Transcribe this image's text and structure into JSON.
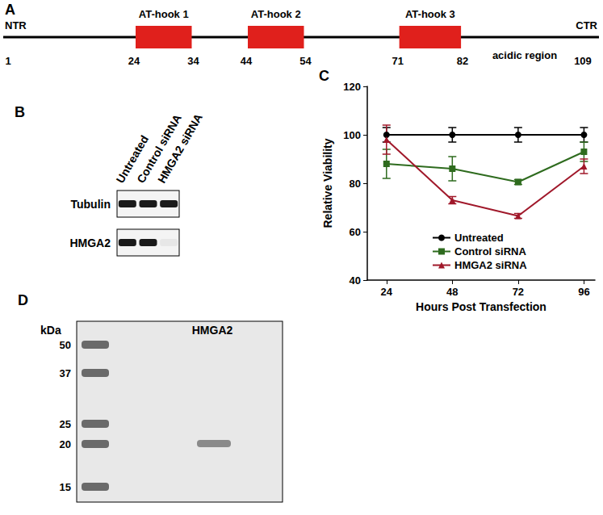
{
  "panels": {
    "A": {
      "label": "A",
      "start_label": "NTR",
      "end_label": "CTR",
      "first_residue": 1,
      "last_residue": 109,
      "domains": [
        {
          "name": "AT-hook 1",
          "start": 24,
          "end": 34
        },
        {
          "name": "AT-hook 2",
          "start": 44,
          "end": 54
        },
        {
          "name": "AT-hook 3",
          "start": 71,
          "end": 82
        }
      ],
      "region": "acidic region"
    },
    "B": {
      "label": "B",
      "lanes": [
        "Untreated",
        "Control siRNA",
        "HMGA2 siRNA"
      ],
      "rows": [
        "Tubulin",
        "HMGA2"
      ]
    },
    "D": {
      "label": "D",
      "unit": "kDa",
      "ladder": [
        50,
        37,
        25,
        20,
        15
      ],
      "lane": "HMGA2"
    }
  },
  "chart_data": {
    "label": "C",
    "type": "line",
    "x_label": "Hours Post Transfection",
    "y_label": "Relative Viability",
    "x": [
      24,
      48,
      72,
      96
    ],
    "xlim": [
      17,
      100
    ],
    "xticks": [
      24,
      48,
      72,
      96
    ],
    "ylim": [
      40,
      120
    ],
    "yticks": [
      40,
      60,
      80,
      100,
      120
    ],
    "grid": false,
    "legend": "inside",
    "series": [
      {
        "name": "Untreated",
        "color": "#000000",
        "marker": "circle",
        "values": [
          100,
          100,
          100,
          100
        ],
        "errors": [
          3,
          3,
          3,
          3
        ]
      },
      {
        "name": "Control siRNA",
        "color": "#2e6b1e",
        "marker": "square",
        "values": [
          88,
          86,
          80.5,
          93
        ],
        "errors": [
          6,
          5,
          1,
          4
        ]
      },
      {
        "name": "HMGA2 siRNA",
        "color": "#a0182a",
        "marker": "triangle",
        "values": [
          98,
          73,
          66.5,
          87
        ],
        "errors": [
          6,
          1.5,
          1,
          3
        ]
      }
    ]
  }
}
